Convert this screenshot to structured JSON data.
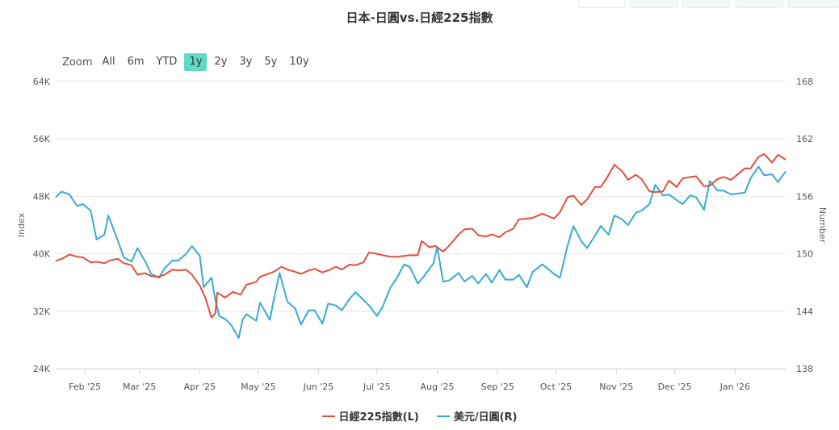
{
  "title": "日本-日圓vs.日經225指數",
  "range_selector": {
    "zoom_label": "Zoom",
    "buttons": [
      "All",
      "6m",
      "YTD",
      "1y",
      "2y",
      "3y",
      "5y",
      "10y"
    ],
    "active": "1y"
  },
  "colors": {
    "nikkei": "#e0503c",
    "usdjpy": "#3aaad2",
    "grid": "#e6e6e6",
    "active_button": "#5fd9c4"
  },
  "chart_data": {
    "type": "line",
    "title": "日本-日圓vs.日經225指數",
    "x_axis": {
      "type": "datetime",
      "range": [
        "2025-01-17",
        "2026-01-27"
      ],
      "tick_labels": [
        "Feb '25",
        "Mar '25",
        "Apr '25",
        "May '25",
        "Jun '25",
        "Jul '25",
        "Aug '25",
        "Sep '25",
        "Oct '25",
        "Nov '25",
        "Dec '25",
        "Jan '26"
      ],
      "tick_dates": [
        "2025-02-01",
        "2025-03-01",
        "2025-04-01",
        "2025-05-01",
        "2025-06-01",
        "2025-07-01",
        "2025-08-01",
        "2025-09-01",
        "2025-10-01",
        "2025-11-01",
        "2025-12-01",
        "2026-01-01"
      ]
    },
    "y_left": {
      "label": "Index",
      "range": [
        24000,
        64000
      ],
      "tick_labels": [
        "24K",
        "32K",
        "40K",
        "48K",
        "56K",
        "64K"
      ],
      "ticks": [
        24000,
        32000,
        40000,
        48000,
        56000,
        64000
      ]
    },
    "y_right": {
      "label": "Number",
      "range": [
        138,
        168
      ],
      "ticks": [
        138,
        144,
        150,
        156,
        162,
        168
      ]
    },
    "grid": true,
    "legend_position": "bottom-center",
    "series": [
      {
        "name": "日經225指數(L)",
        "axis": "left",
        "points": [
          [
            "2025-01-17",
            39000
          ],
          [
            "2025-01-21",
            39400
          ],
          [
            "2025-01-24",
            39900
          ],
          [
            "2025-01-28",
            39600
          ],
          [
            "2025-01-31",
            39500
          ],
          [
            "2025-02-04",
            38800
          ],
          [
            "2025-02-07",
            38900
          ],
          [
            "2025-02-11",
            38700
          ],
          [
            "2025-02-14",
            39100
          ],
          [
            "2025-02-18",
            39300
          ],
          [
            "2025-02-21",
            38700
          ],
          [
            "2025-02-25",
            38400
          ],
          [
            "2025-02-28",
            37100
          ],
          [
            "2025-03-04",
            37300
          ],
          [
            "2025-03-07",
            36900
          ],
          [
            "2025-03-11",
            36800
          ],
          [
            "2025-03-14",
            37100
          ],
          [
            "2025-03-18",
            37800
          ],
          [
            "2025-03-21",
            37700
          ],
          [
            "2025-03-25",
            37800
          ],
          [
            "2025-03-28",
            37100
          ],
          [
            "2025-04-01",
            35600
          ],
          [
            "2025-04-04",
            33800
          ],
          [
            "2025-04-07",
            31100
          ],
          [
            "2025-04-09",
            31700
          ],
          [
            "2025-04-10",
            34600
          ],
          [
            "2025-04-14",
            33900
          ],
          [
            "2025-04-18",
            34700
          ],
          [
            "2025-04-22",
            34300
          ],
          [
            "2025-04-25",
            35700
          ],
          [
            "2025-04-30",
            36100
          ],
          [
            "2025-05-02",
            36800
          ],
          [
            "2025-05-09",
            37500
          ],
          [
            "2025-05-13",
            38200
          ],
          [
            "2025-05-16",
            37800
          ],
          [
            "2025-05-20",
            37500
          ],
          [
            "2025-05-23",
            37200
          ],
          [
            "2025-05-27",
            37700
          ],
          [
            "2025-05-30",
            37900
          ],
          [
            "2025-06-03",
            37400
          ],
          [
            "2025-06-06",
            37700
          ],
          [
            "2025-06-10",
            38200
          ],
          [
            "2025-06-13",
            37800
          ],
          [
            "2025-06-17",
            38500
          ],
          [
            "2025-06-20",
            38400
          ],
          [
            "2025-06-24",
            38800
          ],
          [
            "2025-06-27",
            40200
          ],
          [
            "2025-07-01",
            40000
          ],
          [
            "2025-07-04",
            39800
          ],
          [
            "2025-07-08",
            39600
          ],
          [
            "2025-07-11",
            39600
          ],
          [
            "2025-07-15",
            39700
          ],
          [
            "2025-07-18",
            39800
          ],
          [
            "2025-07-22",
            39800
          ],
          [
            "2025-07-24",
            41800
          ],
          [
            "2025-07-28",
            40900
          ],
          [
            "2025-07-31",
            41100
          ],
          [
            "2025-08-04",
            40300
          ],
          [
            "2025-08-07",
            41100
          ],
          [
            "2025-08-12",
            42700
          ],
          [
            "2025-08-15",
            43400
          ],
          [
            "2025-08-19",
            43500
          ],
          [
            "2025-08-22",
            42600
          ],
          [
            "2025-08-26",
            42400
          ],
          [
            "2025-08-29",
            42700
          ],
          [
            "2025-09-02",
            42300
          ],
          [
            "2025-09-05",
            43000
          ],
          [
            "2025-09-09",
            43500
          ],
          [
            "2025-09-12",
            44800
          ],
          [
            "2025-09-16",
            44900
          ],
          [
            "2025-09-19",
            45000
          ],
          [
            "2025-09-24",
            45600
          ],
          [
            "2025-09-30",
            44900
          ],
          [
            "2025-10-03",
            45800
          ],
          [
            "2025-10-07",
            47900
          ],
          [
            "2025-10-10",
            48100
          ],
          [
            "2025-10-14",
            46800
          ],
          [
            "2025-10-17",
            47600
          ],
          [
            "2025-10-21",
            49300
          ],
          [
            "2025-10-24",
            49300
          ],
          [
            "2025-10-27",
            50500
          ],
          [
            "2025-10-31",
            52400
          ],
          [
            "2025-11-04",
            51500
          ],
          [
            "2025-11-07",
            50300
          ],
          [
            "2025-11-11",
            51000
          ],
          [
            "2025-11-14",
            50400
          ],
          [
            "2025-11-18",
            48700
          ],
          [
            "2025-11-21",
            48600
          ],
          [
            "2025-11-25",
            48700
          ],
          [
            "2025-11-28",
            50200
          ],
          [
            "2025-12-02",
            49300
          ],
          [
            "2025-12-05",
            50500
          ],
          [
            "2025-12-09",
            50700
          ],
          [
            "2025-12-12",
            50800
          ],
          [
            "2025-12-16",
            49400
          ],
          [
            "2025-12-19",
            49500
          ],
          [
            "2025-12-23",
            50400
          ],
          [
            "2025-12-26",
            50700
          ],
          [
            "2025-12-30",
            50300
          ],
          [
            "2026-01-06",
            51900
          ],
          [
            "2026-01-09",
            51900
          ],
          [
            "2026-01-13",
            53500
          ],
          [
            "2026-01-16",
            53900
          ],
          [
            "2026-01-20",
            52700
          ],
          [
            "2026-01-23",
            53800
          ],
          [
            "2026-01-27",
            53100
          ]
        ]
      },
      {
        "name": "美元/日圓(R)",
        "axis": "right",
        "points": [
          [
            "2025-01-17",
            155.9
          ],
          [
            "2025-01-20",
            156.5
          ],
          [
            "2025-01-24",
            156.2
          ],
          [
            "2025-01-28",
            155.0
          ],
          [
            "2025-01-31",
            155.2
          ],
          [
            "2025-02-04",
            154.5
          ],
          [
            "2025-02-07",
            151.5
          ],
          [
            "2025-02-11",
            152.0
          ],
          [
            "2025-02-13",
            154.0
          ],
          [
            "2025-02-17",
            151.9
          ],
          [
            "2025-02-21",
            149.6
          ],
          [
            "2025-02-25",
            149.2
          ],
          [
            "2025-02-28",
            150.6
          ],
          [
            "2025-03-04",
            149.2
          ],
          [
            "2025-03-07",
            147.9
          ],
          [
            "2025-03-11",
            147.5
          ],
          [
            "2025-03-14",
            148.5
          ],
          [
            "2025-03-18",
            149.3
          ],
          [
            "2025-03-21",
            149.3
          ],
          [
            "2025-03-25",
            150.0
          ],
          [
            "2025-03-28",
            150.8
          ],
          [
            "2025-04-01",
            149.8
          ],
          [
            "2025-04-03",
            146.5
          ],
          [
            "2025-04-07",
            147.5
          ],
          [
            "2025-04-09",
            145.2
          ],
          [
            "2025-04-11",
            143.5
          ],
          [
            "2025-04-14",
            143.2
          ],
          [
            "2025-04-17",
            142.6
          ],
          [
            "2025-04-21",
            141.2
          ],
          [
            "2025-04-23",
            143.1
          ],
          [
            "2025-04-25",
            143.7
          ],
          [
            "2025-04-30",
            143.0
          ],
          [
            "2025-05-02",
            144.9
          ],
          [
            "2025-05-07",
            143.1
          ],
          [
            "2025-05-09",
            145.2
          ],
          [
            "2025-05-12",
            148.0
          ],
          [
            "2025-05-14",
            146.5
          ],
          [
            "2025-05-16",
            145.0
          ],
          [
            "2025-05-20",
            144.3
          ],
          [
            "2025-05-23",
            142.6
          ],
          [
            "2025-05-27",
            144.1
          ],
          [
            "2025-05-30",
            144.1
          ],
          [
            "2025-06-03",
            142.7
          ],
          [
            "2025-06-06",
            144.8
          ],
          [
            "2025-06-10",
            144.6
          ],
          [
            "2025-06-13",
            144.1
          ],
          [
            "2025-06-17",
            145.3
          ],
          [
            "2025-06-20",
            146.0
          ],
          [
            "2025-06-24",
            145.2
          ],
          [
            "2025-06-27",
            144.6
          ],
          [
            "2025-07-01",
            143.5
          ],
          [
            "2025-07-04",
            144.5
          ],
          [
            "2025-07-08",
            146.5
          ],
          [
            "2025-07-11",
            147.4
          ],
          [
            "2025-07-15",
            148.9
          ],
          [
            "2025-07-18",
            148.6
          ],
          [
            "2025-07-22",
            146.9
          ],
          [
            "2025-07-25",
            147.6
          ],
          [
            "2025-07-30",
            149.0
          ],
          [
            "2025-08-01",
            150.7
          ],
          [
            "2025-08-04",
            147.1
          ],
          [
            "2025-08-07",
            147.2
          ],
          [
            "2025-08-12",
            148.0
          ],
          [
            "2025-08-15",
            147.1
          ],
          [
            "2025-08-19",
            147.7
          ],
          [
            "2025-08-22",
            146.9
          ],
          [
            "2025-08-26",
            147.9
          ],
          [
            "2025-08-29",
            147.0
          ],
          [
            "2025-09-02",
            148.3
          ],
          [
            "2025-09-05",
            147.3
          ],
          [
            "2025-09-09",
            147.3
          ],
          [
            "2025-09-12",
            147.8
          ],
          [
            "2025-09-16",
            146.5
          ],
          [
            "2025-09-19",
            148.1
          ],
          [
            "2025-09-24",
            148.9
          ],
          [
            "2025-09-30",
            147.9
          ],
          [
            "2025-10-03",
            147.5
          ],
          [
            "2025-10-07",
            150.9
          ],
          [
            "2025-10-10",
            152.9
          ],
          [
            "2025-10-14",
            151.3
          ],
          [
            "2025-10-17",
            150.6
          ],
          [
            "2025-10-21",
            151.9
          ],
          [
            "2025-10-24",
            152.9
          ],
          [
            "2025-10-28",
            152.0
          ],
          [
            "2025-10-31",
            154.0
          ],
          [
            "2025-11-04",
            153.6
          ],
          [
            "2025-11-07",
            153.0
          ],
          [
            "2025-11-11",
            154.3
          ],
          [
            "2025-11-14",
            154.5
          ],
          [
            "2025-11-18",
            155.2
          ],
          [
            "2025-11-21",
            157.2
          ],
          [
            "2025-11-25",
            156.1
          ],
          [
            "2025-11-28",
            156.2
          ],
          [
            "2025-12-02",
            155.6
          ],
          [
            "2025-12-05",
            155.2
          ],
          [
            "2025-12-09",
            156.1
          ],
          [
            "2025-12-12",
            155.9
          ],
          [
            "2025-12-16",
            154.6
          ],
          [
            "2025-12-19",
            157.6
          ],
          [
            "2025-12-23",
            156.6
          ],
          [
            "2025-12-26",
            156.6
          ],
          [
            "2025-12-30",
            156.2
          ],
          [
            "2026-01-06",
            156.4
          ],
          [
            "2026-01-09",
            157.9
          ],
          [
            "2026-01-13",
            159.1
          ],
          [
            "2026-01-16",
            158.2
          ],
          [
            "2026-01-20",
            158.3
          ],
          [
            "2026-01-23",
            157.5
          ],
          [
            "2026-01-27",
            158.6
          ]
        ]
      }
    ]
  }
}
